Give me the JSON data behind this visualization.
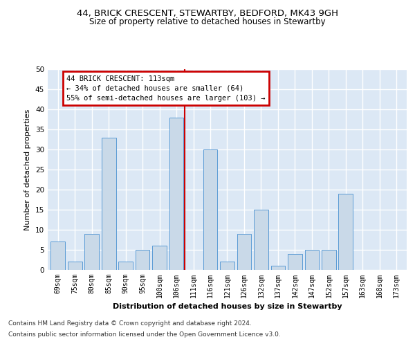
{
  "title1": "44, BRICK CRESCENT, STEWARTBY, BEDFORD, MK43 9GH",
  "title2": "Size of property relative to detached houses in Stewartby",
  "xlabel": "Distribution of detached houses by size in Stewartby",
  "ylabel": "Number of detached properties",
  "categories": [
    "69sqm",
    "75sqm",
    "80sqm",
    "85sqm",
    "90sqm",
    "95sqm",
    "100sqm",
    "106sqm",
    "111sqm",
    "116sqm",
    "121sqm",
    "126sqm",
    "132sqm",
    "137sqm",
    "142sqm",
    "147sqm",
    "152sqm",
    "157sqm",
    "163sqm",
    "168sqm",
    "173sqm"
  ],
  "values": [
    7,
    2,
    9,
    33,
    2,
    5,
    6,
    38,
    0,
    30,
    2,
    9,
    15,
    1,
    4,
    5,
    5,
    19,
    0,
    0,
    0
  ],
  "bar_color": "#c9d9e8",
  "bar_edge_color": "#5b9bd5",
  "highlight_bar_index": 7,
  "highlight_line_color": "#cc0000",
  "annotation_line1": "44 BRICK CRESCENT: 113sqm",
  "annotation_line2": "← 34% of detached houses are smaller (64)",
  "annotation_line3": "55% of semi-detached houses are larger (103) →",
  "annotation_box_facecolor": "#ffffff",
  "annotation_box_edgecolor": "#cc0000",
  "ylim": [
    0,
    50
  ],
  "yticks": [
    0,
    5,
    10,
    15,
    20,
    25,
    30,
    35,
    40,
    45,
    50
  ],
  "bg_color": "#dce8f5",
  "grid_color": "#c8d8e8",
  "title1_fontsize": 9.5,
  "title2_fontsize": 8.5,
  "footer1": "Contains HM Land Registry data © Crown copyright and database right 2024.",
  "footer2": "Contains public sector information licensed under the Open Government Licence v3.0."
}
